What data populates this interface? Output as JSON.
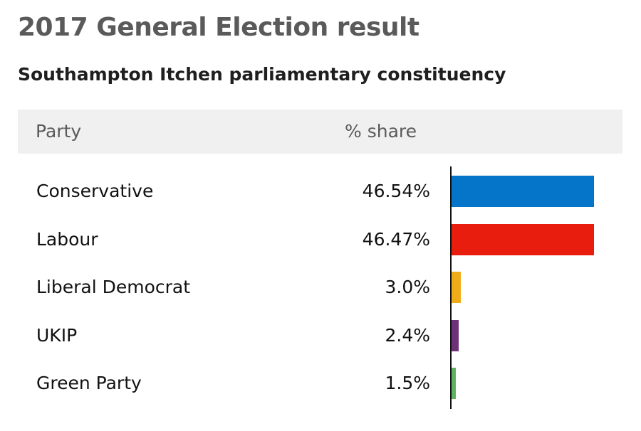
{
  "header": {
    "title": "2017 General Election result",
    "subtitle": "Southampton Itchen parliamentary constituency"
  },
  "table": {
    "col_party": "Party",
    "col_share": "% share"
  },
  "chart_data": {
    "type": "bar",
    "orientation": "horizontal",
    "title": "2017 General Election result",
    "subtitle": "Southampton Itchen parliamentary constituency",
    "categories": [
      "Conservative",
      "Labour",
      "Liberal Democrat",
      "UKIP",
      "Green Party"
    ],
    "values": [
      46.54,
      46.47,
      3.0,
      2.4,
      1.5
    ],
    "labels": [
      "46.54%",
      "46.47%",
      "3.0%",
      "2.4%",
      "1.5%"
    ],
    "colors": [
      "#0575c9",
      "#e91d0e",
      "#efac18",
      "#6d3177",
      "#5fb25f"
    ],
    "xlim": [
      0,
      46.54
    ],
    "grid": false,
    "legend": "none"
  }
}
